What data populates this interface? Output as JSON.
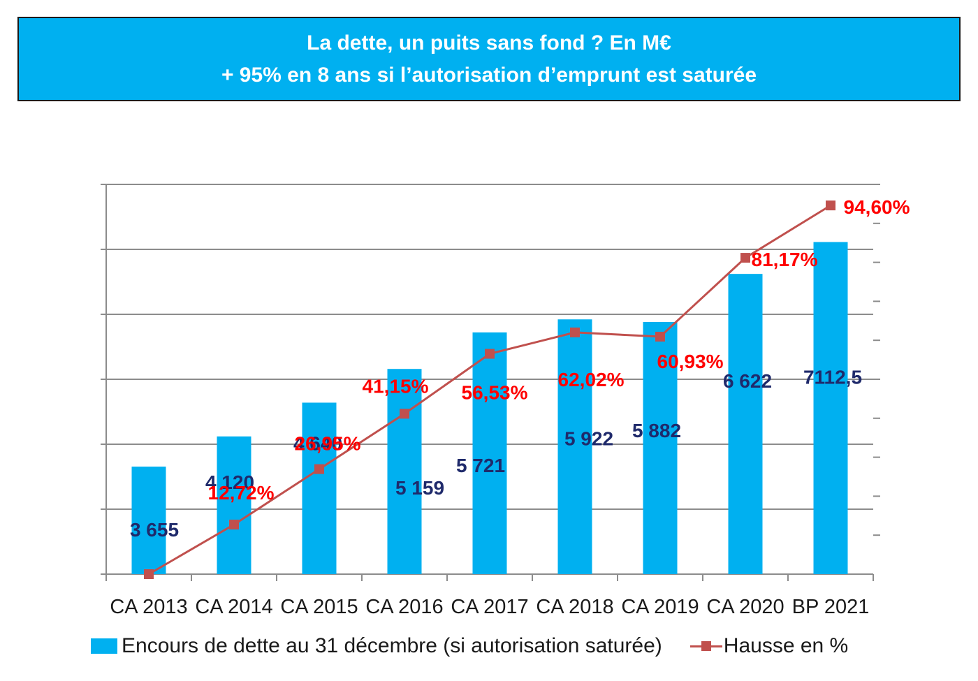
{
  "title": {
    "line1": "La dette, un puits sans fond ? En M€",
    "line2": "+ 95% en 8 ans si l’autorisation d’emprunt est saturée"
  },
  "chart_data": {
    "type": "bar",
    "categories": [
      "CA 2013",
      "CA 2014",
      "CA 2015",
      "CA 2016",
      "CA 2017",
      "CA 2018",
      "CA 2019",
      "CA 2020",
      "BP 2021"
    ],
    "series": [
      {
        "name": "Encours de dette au 31 décembre (si autorisation saturée)",
        "type": "bar",
        "axis": "left",
        "color": "#00b0f0",
        "values": [
          3655,
          4120,
          4640,
          5159,
          5721,
          5922,
          5882,
          6622,
          7112.5
        ],
        "labels": [
          "3 655",
          "4 120",
          "4 640",
          "5 159",
          "5 721",
          "5 922",
          "5 882",
          "6 622",
          "7112,5"
        ],
        "label_color": "#1f2a6b"
      },
      {
        "name": "Hausse en %",
        "type": "line",
        "axis": "right",
        "color": "#c0504d",
        "marker": "square",
        "values": [
          0,
          12.72,
          26.95,
          41.15,
          56.53,
          62.02,
          60.93,
          81.17,
          94.6
        ],
        "labels": [
          "",
          "12,72%",
          "26,95%",
          "41,15%",
          "56,53%",
          "62,02%",
          "60,93%",
          "81,17%",
          "94,60%"
        ],
        "label_color": "#ff0000"
      }
    ],
    "ylim_left": [
      2000,
      8000
    ],
    "ylim_right": [
      0,
      100
    ],
    "grid": true,
    "legend": "bottom"
  }
}
